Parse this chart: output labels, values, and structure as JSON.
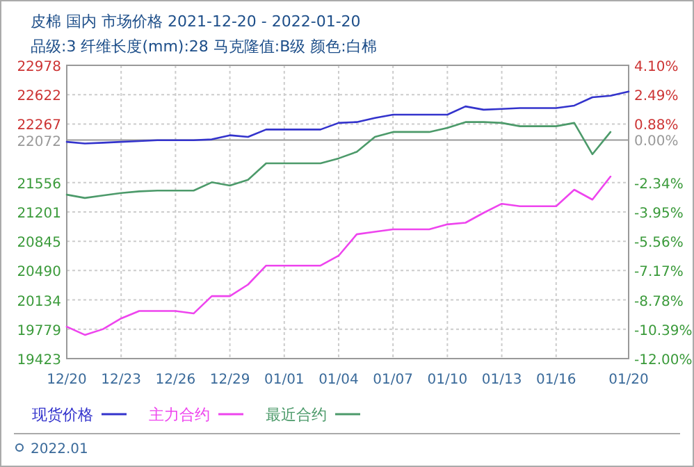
{
  "chart_data": {
    "type": "line",
    "title": "皮棉 国内 市场价格 2021-12-20 - 2022-01-20",
    "subtitle": "品级:3 纤维长度(mm):28 马克隆值:B级 颜色:白棉",
    "x": [
      "2021-12-20",
      "2021-12-21",
      "2021-12-22",
      "2021-12-23",
      "2021-12-24",
      "2021-12-25",
      "2021-12-26",
      "2021-12-27",
      "2021-12-28",
      "2021-12-29",
      "2021-12-30",
      "2021-12-31",
      "2022-01-01",
      "2022-01-02",
      "2022-01-03",
      "2022-01-04",
      "2022-01-05",
      "2022-01-06",
      "2022-01-07",
      "2022-01-08",
      "2022-01-09",
      "2022-01-10",
      "2022-01-11",
      "2022-01-12",
      "2022-01-13",
      "2022-01-14",
      "2022-01-15",
      "2022-01-16",
      "2022-01-17",
      "2022-01-18",
      "2022-01-19",
      "2022-01-20"
    ],
    "series": [
      {
        "name": "现货价格",
        "color": "#3333cc",
        "values": [
          22050,
          22030,
          22040,
          22050,
          22060,
          22070,
          22070,
          22070,
          22080,
          22130,
          22110,
          22200,
          22200,
          22200,
          22200,
          22280,
          22290,
          22340,
          22380,
          22380,
          22380,
          22380,
          22480,
          22440,
          22450,
          22460,
          22460,
          22460,
          22490,
          22590,
          22610,
          22660
        ]
      },
      {
        "name": "主力合约",
        "color": "#ee44ee",
        "values": [
          19810,
          19710,
          19780,
          19910,
          20000,
          20000,
          20000,
          19970,
          20180,
          20180,
          20320,
          20550,
          20550,
          20550,
          20550,
          20670,
          20930,
          20960,
          20990,
          20990,
          20990,
          21050,
          21070,
          21190,
          21300,
          21270,
          21270,
          21270,
          21470,
          21350,
          21630,
          null
        ]
      },
      {
        "name": "最近合约",
        "color": "#4c9a6a",
        "values": [
          21410,
          21370,
          21400,
          21430,
          21450,
          21460,
          21460,
          21460,
          21560,
          21520,
          21590,
          21790,
          21790,
          21790,
          21790,
          21850,
          21930,
          22110,
          22170,
          22170,
          22170,
          22220,
          22290,
          22290,
          22280,
          22240,
          22240,
          22240,
          22280,
          21900,
          22170,
          null
        ]
      }
    ],
    "xlim": [
      "2021-12-20",
      "2022-01-20"
    ],
    "xticks": [
      {
        "value": "2021-12-20",
        "label": "12/20"
      },
      {
        "value": "2021-12-23",
        "label": "12/23"
      },
      {
        "value": "2021-12-26",
        "label": "12/26"
      },
      {
        "value": "2021-12-29",
        "label": "12/29"
      },
      {
        "value": "2022-01-01",
        "label": "01/01"
      },
      {
        "value": "2022-01-04",
        "label": "01/04"
      },
      {
        "value": "2022-01-07",
        "label": "01/07"
      },
      {
        "value": "2022-01-10",
        "label": "01/10"
      },
      {
        "value": "2022-01-13",
        "label": "01/13"
      },
      {
        "value": "2022-01-16",
        "label": "01/16"
      },
      {
        "value": "2022-01-20",
        "label": "01/20"
      }
    ],
    "ylim": [
      19423,
      22978
    ],
    "yticks": [
      22978,
      22622,
      22267,
      21556,
      21201,
      20845,
      20490,
      20134,
      19779,
      19423
    ],
    "y2lim": [
      -12,
      4.1
    ],
    "y2ticks": [
      {
        "value": 4.1,
        "label": "4.10%"
      },
      {
        "value": 2.49,
        "label": "2.49%"
      },
      {
        "value": 0.88,
        "label": "0.88%"
      },
      {
        "value": 0,
        "label": "0.00%"
      },
      {
        "value": -2.34,
        "label": "-2.34%"
      },
      {
        "value": -3.95,
        "label": "-3.95%"
      },
      {
        "value": -5.56,
        "label": "-5.56%"
      },
      {
        "value": -7.17,
        "label": "-7.17%"
      },
      {
        "value": -8.78,
        "label": "-8.78%"
      },
      {
        "value": -10.39,
        "label": "-10.39%"
      },
      {
        "value": -12,
        "label": "-12.00%"
      }
    ],
    "ref_lines": [
      {
        "axis": "y",
        "value": 22072,
        "label": "22072",
        "color": "#999999"
      }
    ],
    "grid": true,
    "legend": "bottom",
    "line_style": "solid",
    "marker": "none",
    "annotations": [
      "2022.01"
    ]
  }
}
